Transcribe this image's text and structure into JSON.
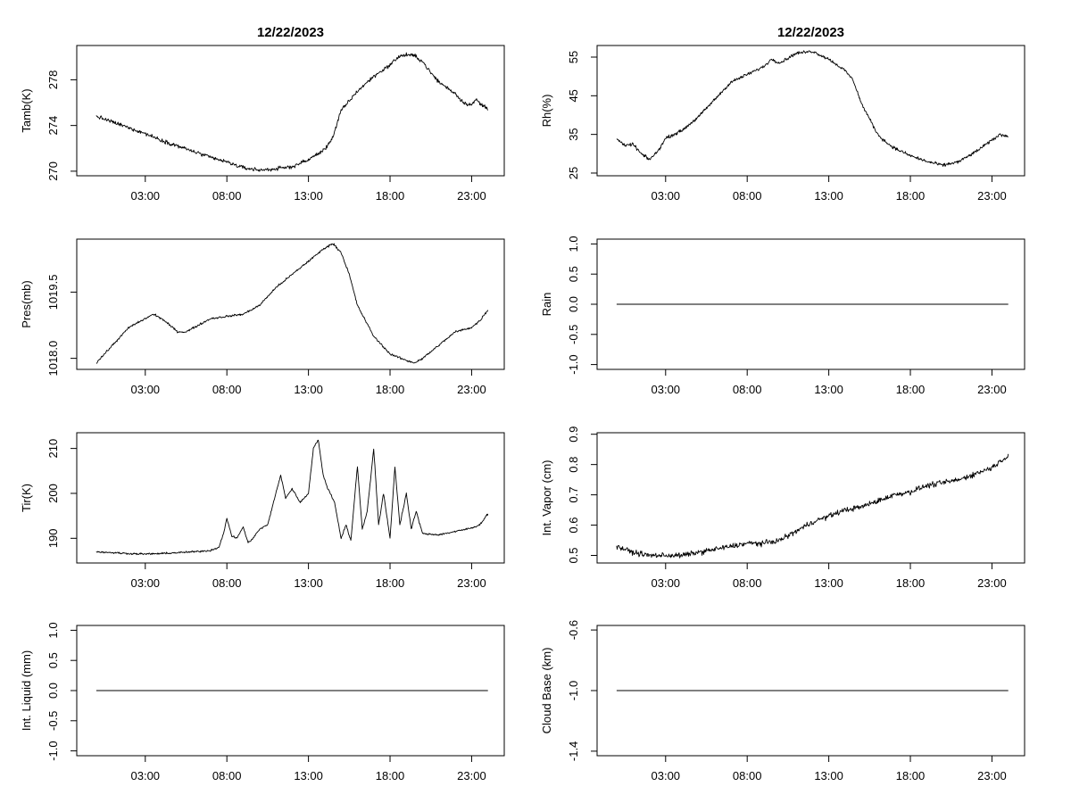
{
  "figure": {
    "background": "#ffffff",
    "line_color": "#000000"
  },
  "chart_data": [
    {
      "type": "line",
      "title": "12/22/2023",
      "ylabel": "Tamb(K)",
      "xticks": [
        "03:00",
        "08:00",
        "13:00",
        "18:00",
        "23:00"
      ],
      "yticks": [
        "270",
        "274",
        "278"
      ],
      "ylim": [
        269.6,
        281.0
      ],
      "series": [
        {
          "name": "Tamb(K)",
          "noise": 0.25,
          "x": [
            0,
            1,
            2,
            3,
            4,
            5,
            6,
            7,
            8,
            9,
            10,
            11,
            12,
            13,
            14,
            14.5,
            15,
            16,
            17,
            18,
            18.5,
            19,
            19.5,
            20,
            20.5,
            21,
            22,
            22.5,
            23,
            23.3,
            23.5,
            24
          ],
          "y": [
            274.8,
            274.3,
            273.8,
            273.3,
            272.7,
            272.2,
            271.7,
            271.2,
            270.8,
            270.3,
            270.1,
            270.2,
            270.4,
            271.0,
            271.9,
            273.0,
            275.3,
            277.0,
            278.3,
            279.3,
            280.0,
            280.2,
            280.1,
            279.6,
            278.6,
            277.8,
            276.8,
            276.0,
            275.8,
            276.3,
            275.9,
            275.5
          ]
        }
      ]
    },
    {
      "type": "line",
      "title": "12/22/2023",
      "ylabel": "Rh(%)",
      "xticks": [
        "03:00",
        "08:00",
        "13:00",
        "18:00",
        "23:00"
      ],
      "yticks": [
        "25",
        "35",
        "45",
        "55"
      ],
      "ylim": [
        24.3,
        58.0
      ],
      "series": [
        {
          "name": "Rh(%)",
          "noise": 0.6,
          "x": [
            0,
            0.5,
            1,
            1.5,
            2,
            2.5,
            3,
            4,
            5,
            6,
            7,
            8,
            9,
            9.5,
            10,
            11,
            12,
            13,
            14,
            14.5,
            15,
            15.5,
            16,
            16.5,
            17,
            18,
            19,
            20,
            20.5,
            21,
            22,
            23,
            23.5,
            24
          ],
          "y": [
            34.0,
            32.0,
            32.5,
            30.0,
            28.5,
            30.5,
            34.0,
            36.0,
            39.5,
            44.0,
            48.5,
            50.5,
            52.5,
            54.5,
            53.5,
            56.0,
            56.5,
            54.5,
            51.5,
            49.0,
            43.0,
            39.0,
            35.0,
            33.0,
            31.5,
            29.5,
            28.0,
            27.0,
            27.5,
            28.0,
            30.5,
            33.5,
            35.0,
            34.5
          ]
        }
      ]
    },
    {
      "type": "line",
      "ylabel": "Pres(mb)",
      "xticks": [
        "03:00",
        "08:00",
        "13:00",
        "18:00",
        "23:00"
      ],
      "yticks": [
        "1018.0",
        "1019.5"
      ],
      "ylim": [
        1017.75,
        1020.7
      ],
      "series": [
        {
          "name": "Pres(mb)",
          "noise": 0.035,
          "x": [
            0,
            1,
            2,
            3,
            3.5,
            4,
            5,
            5.5,
            6,
            7,
            8,
            9,
            10,
            11,
            12,
            13,
            14,
            14.5,
            15,
            15.5,
            16,
            17,
            18,
            19,
            19.5,
            20,
            21,
            22,
            23,
            23.5,
            24
          ],
          "y": [
            1017.9,
            1018.3,
            1018.7,
            1018.9,
            1019.0,
            1018.9,
            1018.6,
            1018.6,
            1018.7,
            1018.9,
            1018.95,
            1019.0,
            1019.2,
            1019.6,
            1019.9,
            1020.2,
            1020.5,
            1020.6,
            1020.4,
            1019.9,
            1019.2,
            1018.5,
            1018.1,
            1017.95,
            1017.9,
            1018.0,
            1018.3,
            1018.6,
            1018.7,
            1018.85,
            1019.1
          ]
        }
      ]
    },
    {
      "type": "line",
      "ylabel": "Rain",
      "xticks": [
        "03:00",
        "08:00",
        "13:00",
        "18:00",
        "23:00"
      ],
      "yticks": [
        "-1.0",
        "-0.5",
        "0.0",
        "0.5",
        "1.0"
      ],
      "ylim": [
        -1.08,
        1.08
      ],
      "series": [
        {
          "name": "Rain",
          "noise": 0,
          "x": [
            0,
            24
          ],
          "y": [
            0.0,
            0.0
          ]
        }
      ]
    },
    {
      "type": "line",
      "ylabel": "Tir(K)",
      "xticks": [
        "03:00",
        "08:00",
        "13:00",
        "18:00",
        "23:00"
      ],
      "yticks": [
        "190",
        "200",
        "210"
      ],
      "ylim": [
        184.5,
        213.5
      ],
      "series": [
        {
          "name": "Tir(K)",
          "noise": 0.3,
          "x": [
            0,
            1,
            2,
            3,
            4,
            5,
            6,
            7,
            7.5,
            7.8,
            8,
            8.3,
            8.6,
            9,
            9.3,
            9.6,
            10,
            10.5,
            11,
            11.3,
            11.6,
            12,
            12.5,
            13,
            13.3,
            13.6,
            13.9,
            14.2,
            14.6,
            15,
            15.3,
            15.6,
            16,
            16.3,
            16.6,
            17,
            17.3,
            17.6,
            18,
            18.3,
            18.6,
            19,
            19.3,
            19.6,
            20,
            21,
            22,
            23,
            23.5,
            24
          ],
          "y": [
            187.0,
            186.8,
            186.6,
            186.5,
            186.6,
            186.8,
            187.0,
            187.3,
            188.0,
            191.0,
            194.5,
            190.5,
            190.0,
            192.5,
            189.0,
            190.0,
            192.0,
            193.0,
            200.0,
            204.0,
            199.0,
            201.0,
            198.0,
            200.0,
            210.0,
            212.0,
            204.0,
            201.0,
            198.0,
            190.0,
            193.0,
            189.5,
            206.0,
            192.0,
            196.0,
            210.0,
            193.0,
            200.0,
            190.0,
            206.0,
            193.0,
            200.0,
            192.0,
            196.0,
            191.0,
            190.8,
            191.5,
            192.3,
            193.0,
            195.5
          ]
        }
      ]
    },
    {
      "type": "line",
      "ylabel": "Int. Vapor (cm)",
      "xticks": [
        "03:00",
        "08:00",
        "13:00",
        "18:00",
        "23:00"
      ],
      "yticks": [
        "0.5",
        "0.6",
        "0.7",
        "0.8",
        "0.9"
      ],
      "ylim": [
        0.475,
        0.905
      ],
      "series": [
        {
          "name": "Int. Vapor (cm)",
          "noise": 0.013,
          "x": [
            0,
            1,
            2,
            3,
            4,
            5,
            6,
            7,
            8,
            9,
            10,
            11,
            12,
            13,
            14,
            15,
            16,
            17,
            18,
            19,
            20,
            21,
            22,
            23,
            23.5,
            24
          ],
          "y": [
            0.53,
            0.51,
            0.5,
            0.5,
            0.5,
            0.51,
            0.52,
            0.53,
            0.54,
            0.54,
            0.55,
            0.58,
            0.61,
            0.63,
            0.65,
            0.66,
            0.68,
            0.7,
            0.71,
            0.73,
            0.74,
            0.75,
            0.77,
            0.79,
            0.81,
            0.83
          ]
        }
      ]
    },
    {
      "type": "line",
      "ylabel": "Int. Liquid (mm)",
      "xticks": [
        "03:00",
        "08:00",
        "13:00",
        "18:00",
        "23:00"
      ],
      "yticks": [
        "-1.0",
        "-0.5",
        "0.0",
        "0.5",
        "1.0"
      ],
      "ylim": [
        -1.08,
        1.08
      ],
      "series": [
        {
          "name": "Int. Liquid (mm)",
          "noise": 0,
          "x": [
            0,
            24
          ],
          "y": [
            0.0,
            0.0
          ]
        }
      ]
    },
    {
      "type": "line",
      "ylabel": "Cloud Base (km)",
      "xticks": [
        "03:00",
        "08:00",
        "13:00",
        "18:00",
        "23:00"
      ],
      "yticks": [
        "-1.4",
        "-1.0",
        "-0.6"
      ],
      "ylim": [
        -1.43,
        -0.57
      ],
      "series": [
        {
          "name": "Cloud Base (km)",
          "noise": 0,
          "x": [
            0,
            24
          ],
          "y": [
            -1.0,
            -1.0
          ]
        }
      ]
    }
  ]
}
